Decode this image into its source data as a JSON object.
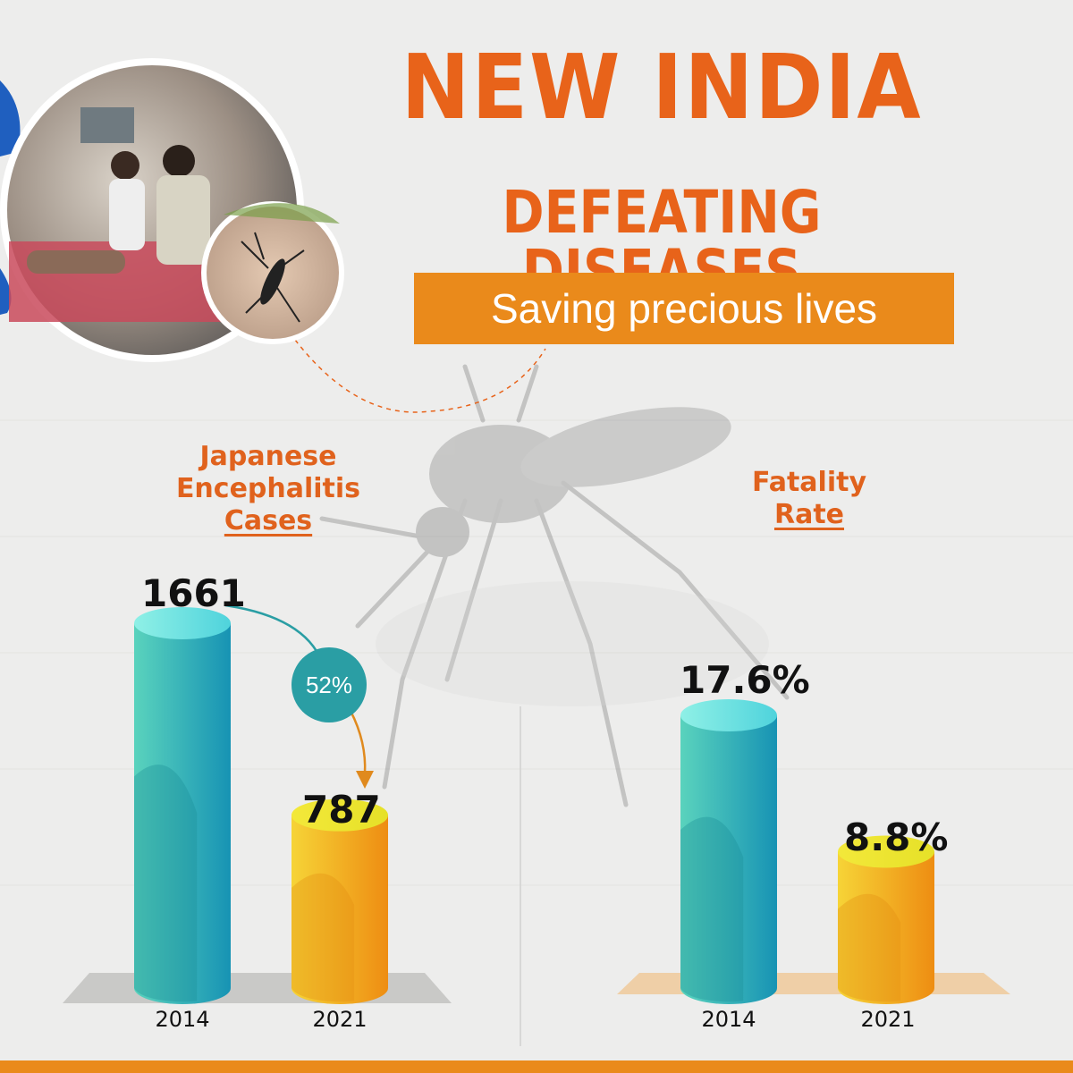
{
  "header": {
    "title_line1": "NEW INDIA",
    "title_line2": "DEFEATING DISEASES",
    "subtitle": "Saving precious lives"
  },
  "colors": {
    "accent_orange": "#e8631a",
    "subtitle_bar": "#ea8a1b",
    "bar_2014": "#1fa6b8",
    "bar_2021": "#f0a51e",
    "badge": "#2a9ea4"
  },
  "change_badge": "52%",
  "chart_data": [
    {
      "type": "bar",
      "title": [
        "Japanese",
        "Encephalitis",
        "Cases"
      ],
      "categories": [
        "2014",
        "2021"
      ],
      "values": [
        1661,
        787
      ],
      "value_labels": [
        "1661",
        "787"
      ],
      "ylim": [
        0,
        1661
      ]
    },
    {
      "type": "bar",
      "title": [
        "Fatality",
        "Rate"
      ],
      "categories": [
        "2014",
        "2021"
      ],
      "values": [
        17.6,
        8.8
      ],
      "value_labels": [
        "17.6%",
        "8.8%"
      ],
      "ylim": [
        0,
        17.6
      ]
    }
  ]
}
